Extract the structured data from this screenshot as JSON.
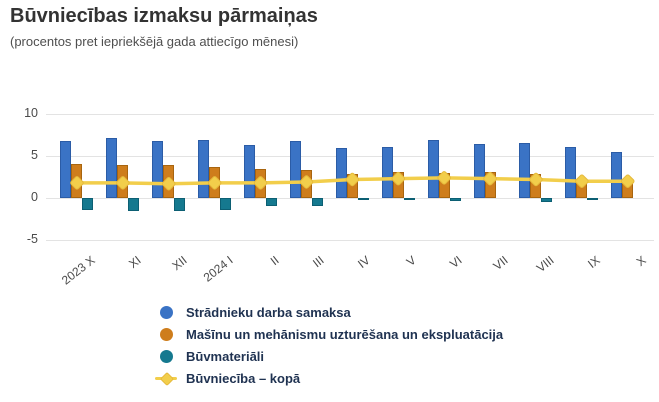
{
  "header": {
    "title": "Būvniecības izmaksu pārmaiņas",
    "subtitle": "(procentos pret iepriekšējā gada attiecīgo mēnesi)"
  },
  "chart_data": {
    "type": "bar",
    "subtype": "grouped bars with line overlay",
    "title": "Būvniecības izmaksu pārmaiņas",
    "subtitle": "(procentos pret iepriekšējā gada attiecīgo mēnesi)",
    "categories": [
      "2023 X",
      "XI",
      "XII",
      "2024 I",
      "II",
      "III",
      "IV",
      "V",
      "VI",
      "VII",
      "VIII",
      "IX",
      "X"
    ],
    "series": [
      {
        "name": "Strādnieku darba samaksa",
        "type": "bar",
        "color": "#3A73C5",
        "border_color": "#2B5CA6",
        "values": [
          6.8,
          7.1,
          6.8,
          6.9,
          6.3,
          6.8,
          6.0,
          6.1,
          6.9,
          6.4,
          6.6,
          6.1,
          5.5
        ]
      },
      {
        "name": "Mašīnu un mehānismu uzturēšana un ekspluatācija",
        "type": "bar",
        "color": "#CE7D1C",
        "border_color": "#A8650F",
        "values": [
          4.1,
          3.9,
          3.9,
          3.7,
          3.5,
          3.3,
          2.9,
          3.1,
          3.0,
          3.1,
          2.8,
          2.2,
          2.0
        ]
      },
      {
        "name": "Būvmateriāli",
        "type": "bar",
        "color": "#15798F",
        "border_color": "#0C5F73",
        "values": [
          -1.4,
          -1.6,
          -1.5,
          -1.4,
          -0.9,
          -1.0,
          -0.1,
          -0.1,
          -0.3,
          0.0,
          -0.5,
          -0.2,
          0.0
        ]
      },
      {
        "name": "Būvniecība – kopā",
        "type": "line",
        "color": "#F2CE4B",
        "marker_border_color": "#E5B93C",
        "values": [
          1.8,
          1.8,
          1.7,
          1.8,
          1.8,
          1.9,
          2.2,
          2.3,
          2.4,
          2.3,
          2.2,
          2.0,
          2.0
        ]
      }
    ],
    "ylim": [
      -5,
      10
    ],
    "yticks": [
      10,
      5,
      0,
      -5
    ],
    "ylabel": "",
    "xlabel": "",
    "grid": true,
    "legend_position": "bottom"
  }
}
